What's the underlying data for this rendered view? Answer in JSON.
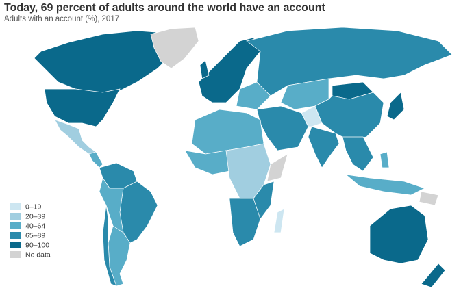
{
  "title": "Today, 69 percent of adults around the world have an account",
  "subtitle": "Adults with an account (%), 2017",
  "legend": {
    "items": [
      {
        "label": "0–19",
        "color": "#cde6f1"
      },
      {
        "label": "20–39",
        "color": "#a1cee0"
      },
      {
        "label": "40–64",
        "color": "#58adc8"
      },
      {
        "label": "65–89",
        "color": "#2a8aab"
      },
      {
        "label": "90–100",
        "color": "#0a698b"
      },
      {
        "label": "No data",
        "color": "#d3d3d3"
      }
    ]
  }
}
